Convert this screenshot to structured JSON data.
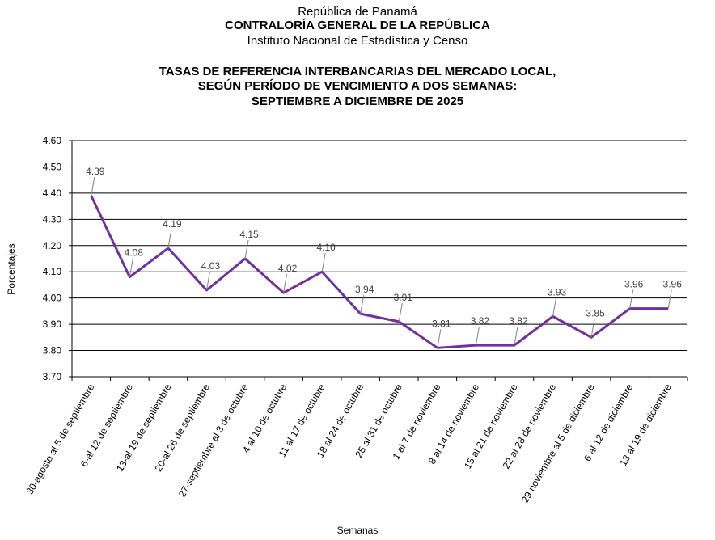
{
  "header": {
    "line1": "República de Panamá",
    "line2": "CONTRALORÍA GENERAL DE LA REPÚBLICA",
    "line3": "Instituto  Nacional de Estadística y Censo"
  },
  "chart_data": {
    "type": "line",
    "title": [
      "TASAS DE REFERENCIA INTERBANCARIAS DEL MERCADO LOCAL,",
      "SEGÚN PERÍODO DE VENCIMIENTO A DOS SEMANAS:",
      "SEPTIEMBRE A DICIEMBRE DE 2025"
    ],
    "xlabel": "Semanas",
    "ylabel": "Porcentajes",
    "ylim": [
      3.7,
      4.6
    ],
    "yticks": [
      "4.60",
      "4.50",
      "4.40",
      "4.30",
      "4.20",
      "4.10",
      "4.00",
      "3.90",
      "3.80",
      "3.70"
    ],
    "categories": [
      "30-agosto al 5 de septiembre",
      "6-al 12 de septiembre",
      "13-al 19 de septiembre",
      "20-al 26 de septiembre",
      "27-septiembre al 3 de octubre",
      "4 al 10 de octubre",
      "11 al 17 de octubre",
      "18 al 24 de octubre",
      "25 al 31 de octubre",
      "1 al 7 de noviembre",
      "8 al 14 de noviembre",
      "15 al 21 de noviembre",
      "22 al 28 de noviembre",
      "29 noviembre al 5 de diciembre",
      "6 al 12 de diciembre",
      "13 al 19 de diciembre"
    ],
    "values": [
      4.39,
      4.08,
      4.19,
      4.03,
      4.15,
      4.02,
      4.1,
      3.94,
      3.91,
      3.81,
      3.82,
      3.82,
      3.93,
      3.85,
      3.96,
      3.96
    ],
    "value_labels": [
      "4.39",
      "4.08",
      "4.19",
      "4.03",
      "4.15",
      "4.02",
      "4.10",
      "3.94",
      "3.91",
      "3.81",
      "3.82",
      "3.82",
      "3.93",
      "3.85",
      "3.96",
      "3.96"
    ],
    "grid": true,
    "line_color": "#7030a0"
  }
}
